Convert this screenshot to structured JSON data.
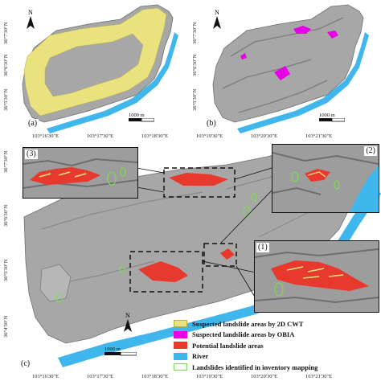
{
  "colors": {
    "cwt": "#e9e27f",
    "obia": "#e600e6",
    "potential": "#e8392f",
    "river": "#3fb6ec",
    "inventory": "#7ed957",
    "terrain": "#a7a7a7",
    "terrain_dark": "#7d7d7d"
  },
  "panels": {
    "a": {
      "label": "(a)",
      "north": "N",
      "scale": "1000",
      "scale_unit": "m"
    },
    "b": {
      "label": "(b)",
      "north": "N",
      "scale": "1000",
      "scale_unit": "m"
    },
    "c": {
      "label": "(c)",
      "north": "N",
      "scale": "1000",
      "scale_unit": "m"
    }
  },
  "insets": {
    "i1": {
      "label": "(1)"
    },
    "i2": {
      "label": "(2)"
    },
    "i3": {
      "label": "(3)"
    }
  },
  "coords_top": [
    "103°16'30\"E",
    "103°17'30\"E",
    "103°18'30\"E",
    "103°19'30\"E",
    "103°20'30\"E",
    "103°21'30\"E"
  ],
  "coords_bottom": [
    "103°16'30\"E",
    "103°17'30\"E",
    "103°18'30\"E",
    "103°19'30\"E",
    "103°20'30\"E",
    "103°21'30\"E"
  ],
  "coords_left_c": [
    "36°7'30\"N",
    "36°6'30\"N",
    "36°5'30\"N",
    "36°4'30\"N"
  ],
  "coords_left_a": [
    "36°7'30\"N",
    "36°6'30\"N",
    "36°5'30\"N"
  ],
  "coords_left_b": [
    "36°7'30\"N",
    "36°6'30\"N",
    "36°5'30\"N"
  ],
  "legend": [
    {
      "label": "Suspected landslide areas by 2D CWT",
      "icon": "yellow-swatch"
    },
    {
      "label": "Suspected landslide areas by OBIA",
      "icon": "magenta-swatch"
    },
    {
      "label": "Potential landslide areas",
      "icon": "red-swatch"
    },
    {
      "label": "River",
      "icon": "blue-swatch"
    },
    {
      "label": "Landslides identified in inventory mapping",
      "icon": "green-outline-swatch"
    }
  ]
}
